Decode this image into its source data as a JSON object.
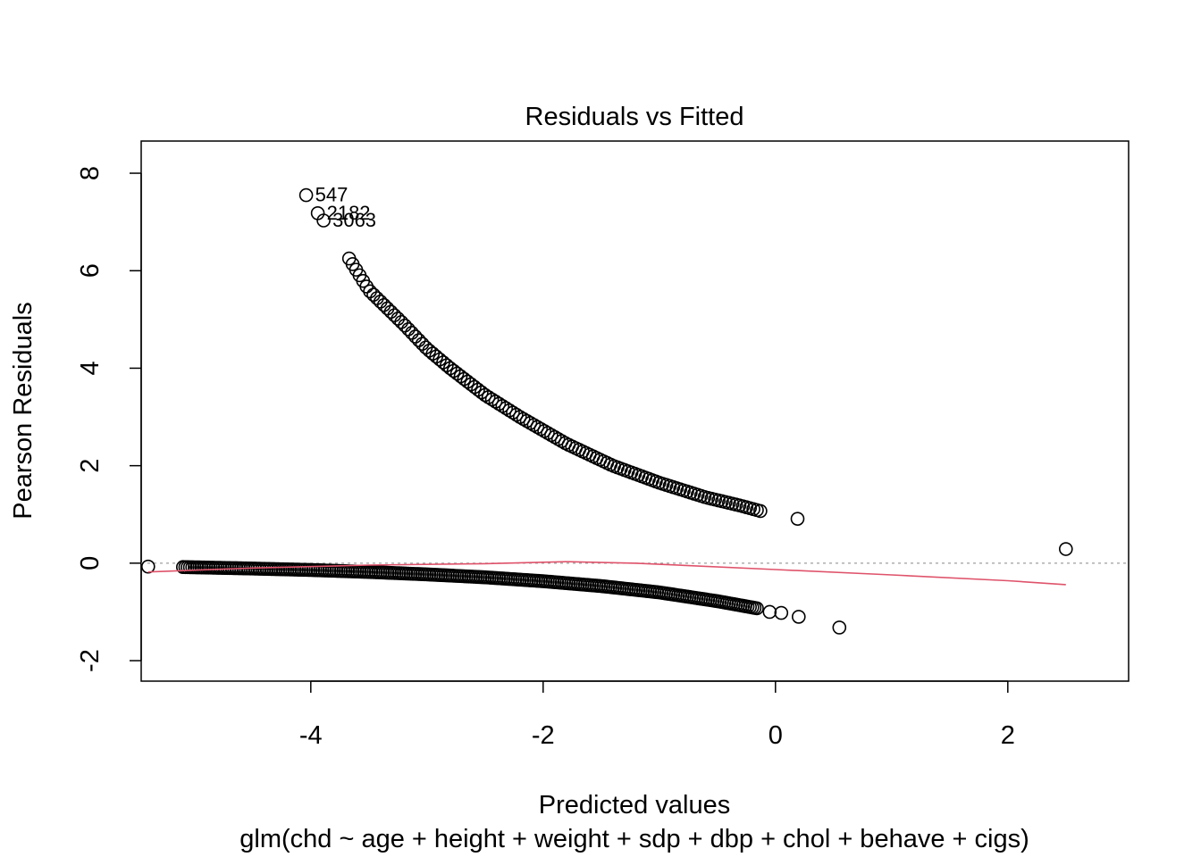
{
  "chart_data": {
    "type": "scatter",
    "title": "Residuals vs Fitted",
    "xlabel": "Predicted values",
    "subtitle": "glm(chd ~ age + height + weight + sdp + dbp + chol + behave + cigs)",
    "ylabel": "Pearson Residuals",
    "xlim": [
      -5.46,
      3.04
    ],
    "ylim": [
      -2.42,
      8.66
    ],
    "x_ticks": [
      -4,
      -2,
      0,
      2
    ],
    "y_ticks": [
      -2,
      0,
      2,
      4,
      6,
      8
    ],
    "x_tick_labels": [
      "-4",
      "-2",
      "0",
      "2"
    ],
    "y_tick_labels": [
      "-2",
      "0",
      "2",
      "4",
      "6",
      "8"
    ],
    "grid": false,
    "reference_line": {
      "y": 0,
      "style": "dotted",
      "color": "#9e9e9e"
    },
    "point_color": "#000000",
    "smooth_color": "#df536b",
    "labeled_points": [
      {
        "label": "547",
        "x": -4.04,
        "y": 7.55
      },
      {
        "label": "2182",
        "x": -3.94,
        "y": 7.18
      },
      {
        "label": "3063",
        "x": -3.89,
        "y": 7.03
      }
    ],
    "upper_curve": {
      "description_points": [
        {
          "x": -3.67,
          "y": 6.25
        },
        {
          "x": -3.5,
          "y": 5.6
        },
        {
          "x": -3.2,
          "y": 4.9
        },
        {
          "x": -3.0,
          "y": 4.4
        },
        {
          "x": -2.8,
          "y": 4.0
        },
        {
          "x": -2.5,
          "y": 3.45
        },
        {
          "x": -2.2,
          "y": 3.0
        },
        {
          "x": -1.8,
          "y": 2.45
        },
        {
          "x": -1.4,
          "y": 2.0
        },
        {
          "x": -1.0,
          "y": 1.65
        },
        {
          "x": -0.6,
          "y": 1.35
        },
        {
          "x": -0.3,
          "y": 1.18
        },
        {
          "x": -0.13,
          "y": 1.07
        }
      ]
    },
    "lower_curve": {
      "description_points": [
        {
          "x": -5.1,
          "y": -0.08
        },
        {
          "x": -4.5,
          "y": -0.11
        },
        {
          "x": -4.0,
          "y": -0.14
        },
        {
          "x": -3.5,
          "y": -0.18
        },
        {
          "x": -3.0,
          "y": -0.23
        },
        {
          "x": -2.5,
          "y": -0.29
        },
        {
          "x": -2.0,
          "y": -0.37
        },
        {
          "x": -1.5,
          "y": -0.47
        },
        {
          "x": -1.0,
          "y": -0.6
        },
        {
          "x": -0.5,
          "y": -0.78
        },
        {
          "x": -0.15,
          "y": -0.93
        }
      ]
    },
    "isolated_points": [
      {
        "x": -5.4,
        "y": -0.07
      },
      {
        "x": 0.19,
        "y": 0.91
      },
      {
        "x": -0.05,
        "y": -1.0
      },
      {
        "x": 0.05,
        "y": -1.02
      },
      {
        "x": 0.2,
        "y": -1.1
      },
      {
        "x": 0.55,
        "y": -1.32
      },
      {
        "x": 2.5,
        "y": 0.29
      }
    ],
    "smooth_line": [
      {
        "x": -5.4,
        "y": -0.18
      },
      {
        "x": -4.5,
        "y": -0.1
      },
      {
        "x": -3.5,
        "y": -0.04
      },
      {
        "x": -2.5,
        "y": -0.01
      },
      {
        "x": -1.8,
        "y": 0.03
      },
      {
        "x": -1.2,
        "y": 0.0
      },
      {
        "x": 0.0,
        "y": -0.13
      },
      {
        "x": 1.0,
        "y": -0.24
      },
      {
        "x": 2.0,
        "y": -0.36
      },
      {
        "x": 2.5,
        "y": -0.44
      }
    ]
  }
}
